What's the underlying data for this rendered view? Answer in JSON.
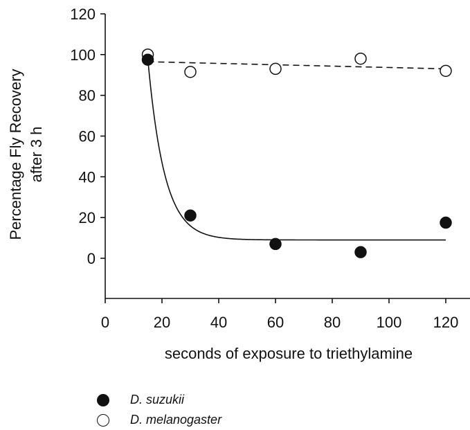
{
  "chart_data": {
    "type": "scatter",
    "xlabel": "seconds of exposure to triethylamine",
    "ylabel": [
      "Percentage Fly Recovery",
      "after 3 h"
    ],
    "xlim": [
      0,
      130
    ],
    "ylim": [
      -20,
      120
    ],
    "xticks": [
      0,
      20,
      40,
      60,
      80,
      100,
      120
    ],
    "yticks": [
      0,
      20,
      40,
      60,
      80,
      100,
      120
    ],
    "grid": false,
    "legend_position": "bottom-left",
    "series": [
      {
        "name": "D. suzukii",
        "marker": "filled-circle",
        "color": "#111111",
        "x": [
          15,
          30,
          60,
          90,
          120
        ],
        "y": [
          97.5,
          21,
          7,
          3,
          17.5
        ],
        "fit": {
          "type": "exponential-decay",
          "line": "solid",
          "asymptote": 9,
          "start_x": 15,
          "start_y": 98,
          "end_x": 120,
          "rate": 0.17
        }
      },
      {
        "name": "D. melanogaster",
        "marker": "open-circle",
        "color": "#111111",
        "x": [
          15,
          30,
          60,
          90,
          120
        ],
        "y": [
          100,
          91.5,
          93,
          98,
          92
        ],
        "fit": {
          "type": "linear",
          "line": "dashed",
          "x": [
            15,
            120
          ],
          "y": [
            96.5,
            93
          ]
        }
      }
    ]
  }
}
